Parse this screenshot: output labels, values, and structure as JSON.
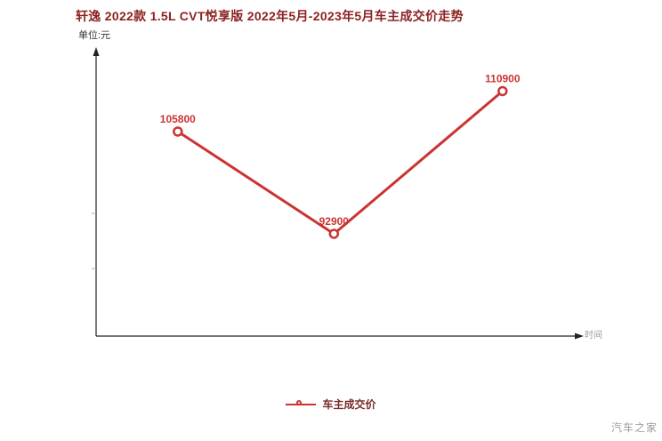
{
  "page": {
    "title": "轩逸 2022款 1.5L CVT悦享版 2022年5月-2023年5月车主成交价走势"
  },
  "chart_data": {
    "type": "line",
    "title": "轩逸 2022款 1.5L CVT悦享版 2022年5月-2023年5月车主成交价走势",
    "unit_label": "单位:元",
    "xlabel": "时间",
    "ylabel": "",
    "legend": [
      "车主成交价"
    ],
    "legend_position": "bottom-center",
    "grid": false,
    "ylim": [
      80000,
      116000
    ],
    "series": [
      {
        "name": "车主成交价",
        "color": "#cb3433",
        "points": [
          {
            "x_frac": 0.17,
            "value": 105800,
            "label": "105800"
          },
          {
            "x_frac": 0.495,
            "value": 92900,
            "label": "92900"
          },
          {
            "x_frac": 0.846,
            "value": 110900,
            "label": "110900"
          }
        ]
      }
    ]
  },
  "watermark": "汽车之家",
  "colors": {
    "accent": "#cb3433",
    "title": "#8b2222",
    "axis": "#222222",
    "muted": "#999999"
  }
}
